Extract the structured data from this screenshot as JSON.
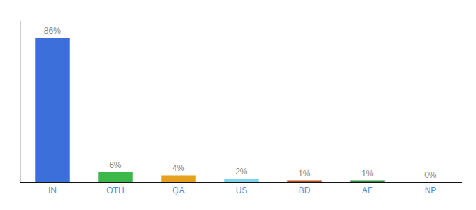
{
  "chart_data": {
    "type": "bar",
    "categories": [
      "IN",
      "OTH",
      "QA",
      "US",
      "BD",
      "AE",
      "NP"
    ],
    "values": [
      86,
      6,
      4,
      2,
      1,
      1,
      0
    ],
    "value_labels": [
      "86%",
      "6%",
      "4%",
      "2%",
      "1%",
      "1%",
      "0%"
    ],
    "data_labels": true,
    "colors": [
      "#3d6fdb",
      "#3cb84a",
      "#e6a020",
      "#7dd4ef",
      "#b84a20",
      "#2e8b40",
      "#cccccc"
    ],
    "ylim": [
      0,
      96
    ],
    "grid": false,
    "tick_labels": "x"
  }
}
